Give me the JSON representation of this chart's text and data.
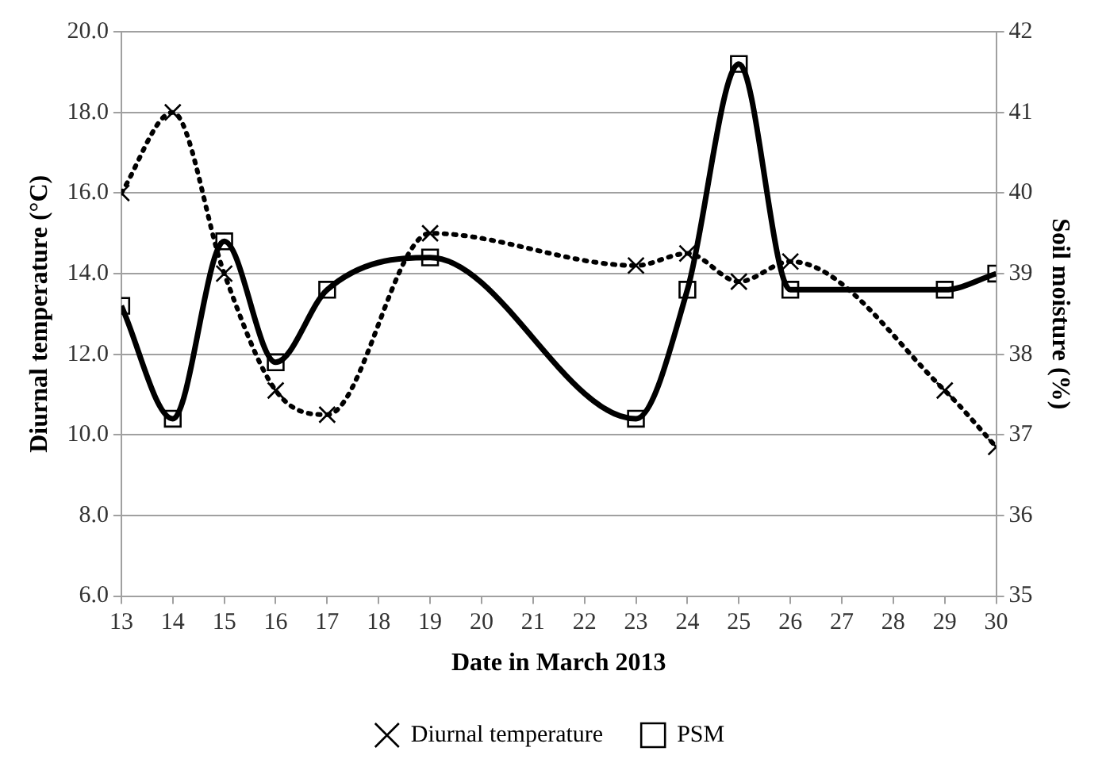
{
  "chart_data": {
    "type": "line",
    "xlabel": "Date in March 2013",
    "ylabel": "Diurnal temperature (°C)",
    "y2label": "Soil moisture (%)",
    "x": [
      13,
      14,
      15,
      16,
      17,
      19,
      23,
      24,
      25,
      26,
      29,
      30
    ],
    "xlim": [
      13,
      30
    ],
    "xticks": [
      13,
      14,
      15,
      16,
      17,
      18,
      19,
      20,
      21,
      22,
      23,
      24,
      25,
      26,
      27,
      28,
      29,
      30
    ],
    "ylim": [
      6,
      20
    ],
    "yticks": [
      {
        "value": 6,
        "label": "6.0"
      },
      {
        "value": 8,
        "label": "8.0"
      },
      {
        "value": 10,
        "label": "10.0"
      },
      {
        "value": 12,
        "label": "12.0"
      },
      {
        "value": 14,
        "label": "14.0"
      },
      {
        "value": 16,
        "label": "16.0"
      },
      {
        "value": 18,
        "label": "18.0"
      },
      {
        "value": 20,
        "label": "20.0"
      }
    ],
    "y2lim": [
      35,
      42
    ],
    "y2ticks": [
      35,
      36,
      37,
      38,
      39,
      40,
      41,
      42
    ],
    "series": [
      {
        "name": "Diurnal temperature",
        "color": "#000000",
        "marker": "cross",
        "line_style": "dotted",
        "values": [
          16.0,
          18.0,
          14.0,
          11.1,
          10.5,
          15.0,
          14.2,
          14.5,
          13.8,
          14.3,
          11.1,
          9.7
        ]
      },
      {
        "name": "PSM",
        "color": "#000000",
        "marker": "square",
        "line_style": "solid",
        "axis": "y2",
        "values": [
          38.6,
          37.2,
          39.4,
          37.9,
          38.8,
          39.2,
          37.2,
          38.8,
          41.6,
          38.8,
          38.8,
          39.0
        ]
      }
    ],
    "grid": "y",
    "legend": "bottom"
  }
}
